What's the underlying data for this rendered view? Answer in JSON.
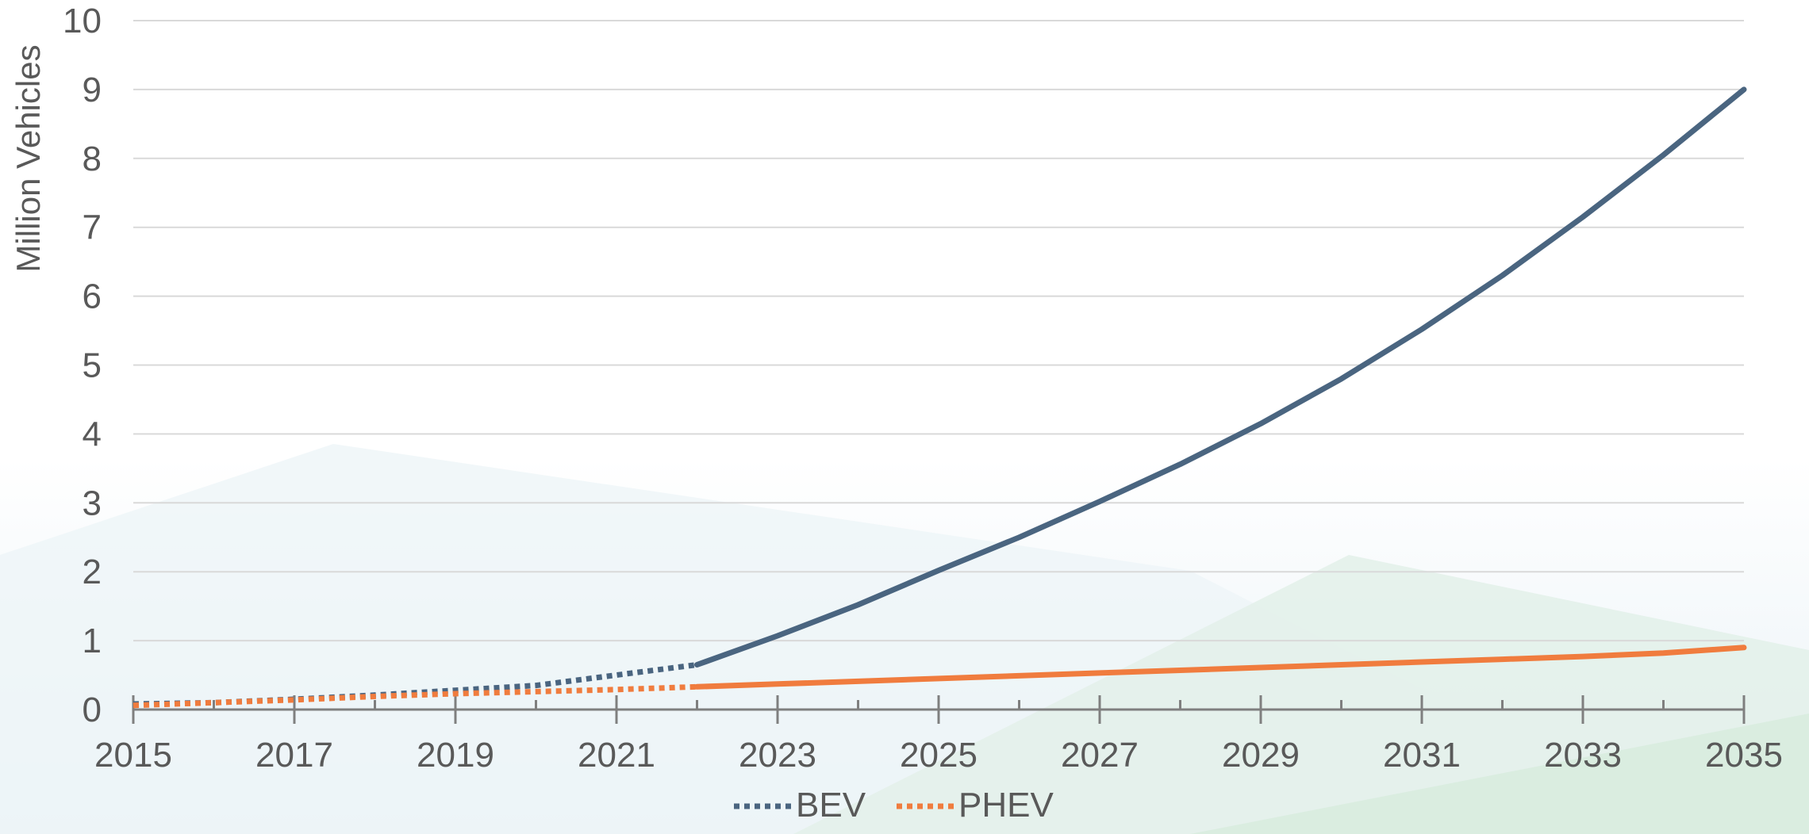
{
  "chart_data": {
    "type": "line",
    "title": "",
    "xlabel": "",
    "ylabel": "Million Vehicles",
    "xlim": [
      2015,
      2035
    ],
    "ylim": [
      0,
      10
    ],
    "x_ticks": [
      2015,
      2017,
      2019,
      2021,
      2023,
      2025,
      2027,
      2029,
      2031,
      2033,
      2035
    ],
    "x_tick_labels": [
      "2015",
      "2017",
      "2019",
      "2021",
      "2023",
      "2025",
      "2027",
      "2029",
      "2031",
      "2033",
      "2035"
    ],
    "y_ticks": [
      0,
      1,
      2,
      3,
      4,
      5,
      6,
      7,
      8,
      9,
      10
    ],
    "y_tick_labels": [
      "0",
      "1",
      "2",
      "3",
      "4",
      "5",
      "6",
      "7",
      "8",
      "9",
      "10"
    ],
    "grid": true,
    "legend_position": "bottom",
    "x": [
      2015,
      2016,
      2017,
      2018,
      2019,
      2020,
      2021,
      2022,
      2023,
      2024,
      2025,
      2026,
      2027,
      2028,
      2029,
      2030,
      2031,
      2032,
      2033,
      2034,
      2035
    ],
    "historical_through": 2022,
    "series": [
      {
        "name": "BEV",
        "color": "#4A6580",
        "values": [
          0.08,
          0.1,
          0.15,
          0.21,
          0.28,
          0.35,
          0.5,
          0.65,
          1.07,
          1.52,
          2.02,
          2.5,
          3.02,
          3.56,
          4.15,
          4.8,
          5.52,
          6.3,
          7.15,
          8.05,
          9.0
        ]
      },
      {
        "name": "PHEV",
        "color": "#F07C3E",
        "values": [
          0.06,
          0.1,
          0.14,
          0.19,
          0.23,
          0.26,
          0.29,
          0.33,
          0.37,
          0.41,
          0.45,
          0.49,
          0.53,
          0.57,
          0.61,
          0.65,
          0.69,
          0.73,
          0.77,
          0.82,
          0.9
        ]
      }
    ]
  }
}
